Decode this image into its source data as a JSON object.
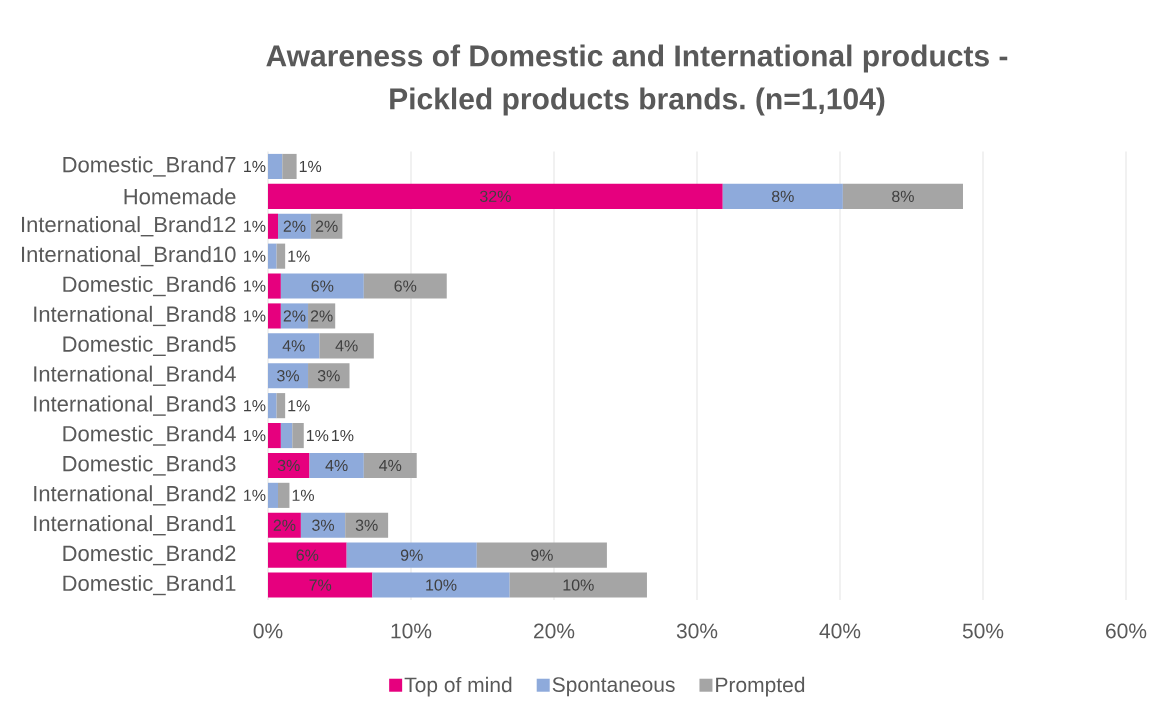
{
  "chart_data": {
    "type": "bar",
    "orientation": "horizontal",
    "stacked": true,
    "title": "Awareness of Domestic and International products - Pickled products brands. (n=1,104)",
    "categories": [
      "Domestic_Brand7",
      "Homemade",
      "International_Brand12",
      "International_Brand10",
      "Domestic_Brand6",
      "International_Brand8",
      "Domestic_Brand5",
      "International_Brand4",
      "International_Brand3",
      "Domestic_Brand4",
      "Domestic_Brand3",
      "International_Brand2",
      "International_Brand1",
      "Domestic_Brand2",
      "Domestic_Brand1"
    ],
    "series": [
      {
        "name": "Top of mind",
        "color": "#e6007e",
        "values": [
          null,
          31.8,
          0.7,
          null,
          0.9,
          0.9,
          null,
          null,
          null,
          0.9,
          2.9,
          null,
          2.3,
          5.5,
          7.3
        ],
        "value_labels": [
          null,
          "32%",
          "1%",
          null,
          "1%",
          "1%",
          null,
          null,
          null,
          "1%",
          "3%",
          null,
          "2%",
          "6%",
          "7%"
        ]
      },
      {
        "name": "Spontaneous",
        "color": "#8eaadb",
        "values": [
          1.0,
          8.4,
          2.3,
          0.6,
          5.8,
          1.9,
          3.6,
          2.8,
          0.6,
          0.8,
          3.8,
          0.7,
          3.1,
          9.1,
          9.6
        ],
        "value_labels": [
          "1%",
          "8%",
          "2%",
          "1%",
          "6%",
          "2%",
          "4%",
          "3%",
          "1%",
          "1%",
          "4%",
          "1%",
          "3%",
          "9%",
          "10%"
        ]
      },
      {
        "name": "Prompted",
        "color": "#a5a5a5",
        "values": [
          1.0,
          8.4,
          2.2,
          0.6,
          5.8,
          1.9,
          3.8,
          2.9,
          0.6,
          0.8,
          3.7,
          0.8,
          3.0,
          9.1,
          9.6
        ],
        "value_labels": [
          "1%",
          "8%",
          "2%",
          "1%",
          "6%",
          "2%",
          "4%",
          "3%",
          "1%",
          "1%",
          "4%",
          "1%",
          "3%",
          "9%",
          "10%"
        ]
      }
    ],
    "xlim": [
      0,
      60
    ],
    "xticks": [
      {
        "value": 0,
        "label": "0%"
      },
      {
        "value": 10,
        "label": "10%"
      },
      {
        "value": 20,
        "label": "20%"
      },
      {
        "value": 30,
        "label": "30%"
      },
      {
        "value": 40,
        "label": "40%"
      },
      {
        "value": 50,
        "label": "50%"
      },
      {
        "value": 60,
        "label": "60%"
      }
    ],
    "grid": "x",
    "legend": "bottom"
  }
}
